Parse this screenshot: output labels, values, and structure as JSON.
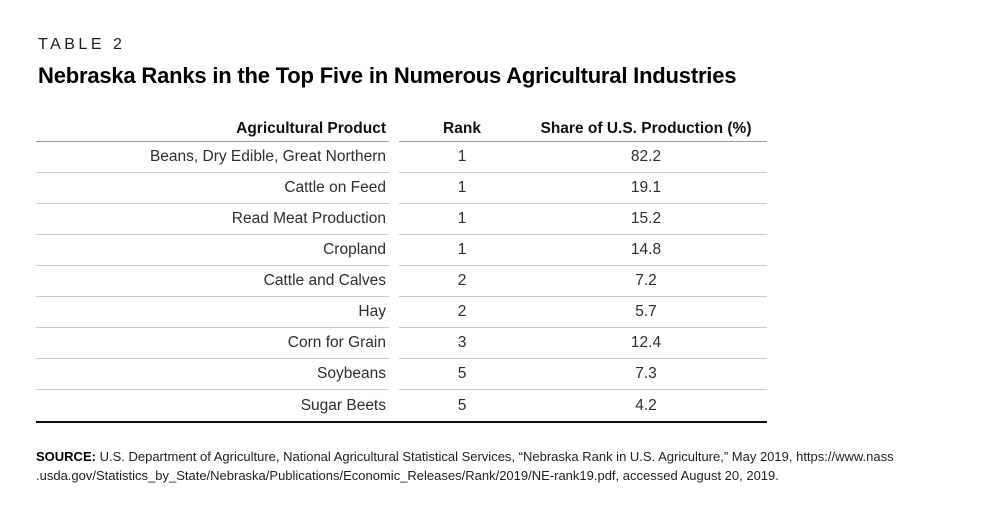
{
  "header": {
    "table_label": "TABLE 2",
    "title": "Nebraska Ranks in the Top Five in Numerous Agricultural Industries"
  },
  "table": {
    "columns": [
      "Agricultural Product",
      "Rank",
      "Share of U.S. Production (%)"
    ],
    "rows": [
      {
        "product": "Beans, Dry Edible, Great Northern",
        "rank": "1",
        "share": "82.2"
      },
      {
        "product": "Cattle on Feed",
        "rank": "1",
        "share": "19.1"
      },
      {
        "product": "Read Meat Production",
        "rank": "1",
        "share": "15.2"
      },
      {
        "product": "Cropland",
        "rank": "1",
        "share": "14.8"
      },
      {
        "product": "Cattle and Calves",
        "rank": "2",
        "share": "7.2"
      },
      {
        "product": "Hay",
        "rank": "2",
        "share": "5.7"
      },
      {
        "product": "Corn for Grain",
        "rank": "3",
        "share": "12.4"
      },
      {
        "product": "Soybeans",
        "rank": "5",
        "share": "7.3"
      },
      {
        "product": "Sugar Beets",
        "rank": "5",
        "share": "4.2"
      }
    ]
  },
  "source": {
    "label": "SOURCE:",
    "line1": "U.S. Department of Agriculture, National Agricultural Statistical Services, “Nebraska Rank in U.S. Agriculture,” May 2019, https://www.nass",
    "line2": ".usda.gov/Statistics_by_State/Nebraska/Publications/Economic_Releases/Rank/2019/NE-rank19.pdf, accessed August 20, 2019."
  },
  "colors": {
    "row_rule": "#cbcbcb",
    "header_rule": "#9b9b9b",
    "bottom_rule": "#111111",
    "text": "#2e2e2e"
  }
}
